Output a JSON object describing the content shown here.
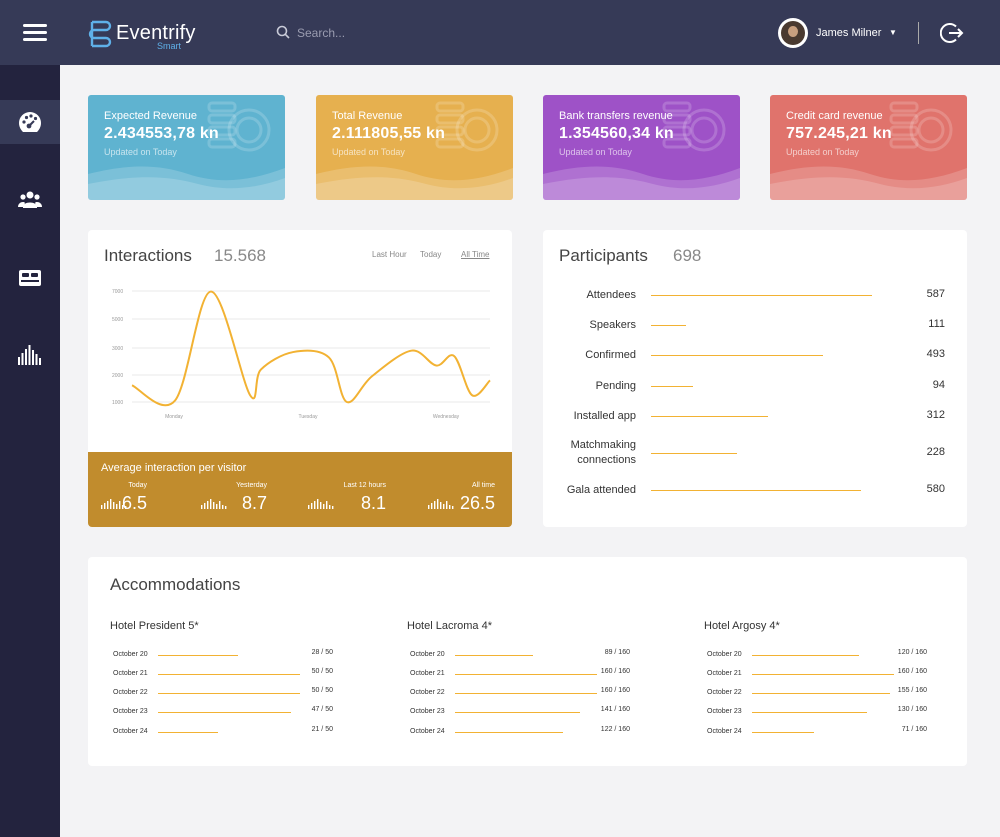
{
  "header": {
    "app_name": "Eventrify",
    "app_sub": "Smart",
    "search_placeholder": "Search...",
    "user_name": "James Milner"
  },
  "sidebar": {
    "items": [
      {
        "icon": "dashboard-gauge-icon",
        "active": true
      },
      {
        "icon": "users-icon",
        "active": false
      },
      {
        "icon": "bed-icon",
        "active": false
      },
      {
        "icon": "equalizer-icon",
        "active": false
      }
    ]
  },
  "cards": [
    {
      "title": "Expected Revenue",
      "value": "2.434553,78 kn",
      "updated": "Updated on Today",
      "color": "#5fb3d0"
    },
    {
      "title": "Total Revenue",
      "value": "2.111805,55 kn",
      "updated": "Updated on Today",
      "color": "#e6b04f"
    },
    {
      "title": "Bank transfers revenue",
      "value": "1.354560,34 kn",
      "updated": "Updated on Today",
      "color": "#9e52c7"
    },
    {
      "title": "Credit card revenue",
      "value": "757.245,21 kn",
      "updated": "Updated on Today",
      "color": "#e0736c"
    }
  ],
  "interactions": {
    "title": "Interactions",
    "count": "15.568",
    "tabs": [
      "Last Hour",
      "Today",
      "All Time"
    ],
    "active_tab": "All Time"
  },
  "chart_data": {
    "type": "line",
    "ylim": [
      1000,
      7000
    ],
    "yticks": [
      "7000",
      "5000",
      "3000",
      "2000",
      "1000"
    ],
    "xticks": [
      "Monday",
      "Tuesday",
      "Wednesday"
    ],
    "series_color": "#f2b233",
    "x": [
      0,
      0.12,
      0.22,
      0.33,
      0.36,
      0.45,
      0.55,
      0.6,
      0.67,
      0.78,
      0.85,
      0.9,
      0.95,
      1.0
    ],
    "y": [
      1620,
      1050,
      6960,
      1250,
      2200,
      2850,
      2650,
      1000,
      1950,
      2900,
      2350,
      2700,
      1250,
      1800
    ]
  },
  "avg": {
    "title": "Average interaction per visitor",
    "stats": [
      {
        "label": "Today",
        "value": "6.5"
      },
      {
        "label": "Yesterday",
        "value": "8.7"
      },
      {
        "label": "Last 12 hours",
        "value": "8.1"
      },
      {
        "label": "All time",
        "value": "26.5"
      }
    ]
  },
  "participants": {
    "title": "Participants",
    "count": "698",
    "rows": [
      {
        "label": "Attendees",
        "value": "587",
        "fraction": 1.0
      },
      {
        "label": "Speakers",
        "value": "111",
        "fraction": 0.16
      },
      {
        "label": "Confirmed",
        "value": "493",
        "fraction": 0.78
      },
      {
        "label": "Pending",
        "value": "94",
        "fraction": 0.19
      },
      {
        "label": "Installed app",
        "value": "312",
        "fraction": 0.53
      },
      {
        "label": "Matchmaking connections",
        "value": "228",
        "fraction": 0.39
      },
      {
        "label": "Gala attended",
        "value": "580",
        "fraction": 0.95
      }
    ]
  },
  "accommodations": {
    "title": "Accommodations",
    "hotels": [
      {
        "name": "Hotel President 5*",
        "rows": [
          {
            "date": "October 20",
            "value": "28 / 50",
            "fraction": 0.56
          },
          {
            "date": "October 21",
            "value": "50 / 50",
            "fraction": 1.0
          },
          {
            "date": "October 22",
            "value": "50 / 50",
            "fraction": 1.0
          },
          {
            "date": "October 23",
            "value": "47 / 50",
            "fraction": 0.94
          },
          {
            "date": "October 24",
            "value": "21 / 50",
            "fraction": 0.42
          }
        ]
      },
      {
        "name": "Hotel Lacroma 4*",
        "rows": [
          {
            "date": "October 20",
            "value": "89 / 160",
            "fraction": 0.55
          },
          {
            "date": "October 21",
            "value": "160 / 160",
            "fraction": 1.0
          },
          {
            "date": "October 22",
            "value": "160 / 160",
            "fraction": 1.0
          },
          {
            "date": "October 23",
            "value": "141 / 160",
            "fraction": 0.88
          },
          {
            "date": "October 24",
            "value": "122 / 160",
            "fraction": 0.76
          }
        ]
      },
      {
        "name": "Hotel Argosy 4*",
        "rows": [
          {
            "date": "October 20",
            "value": "120 / 160",
            "fraction": 0.75
          },
          {
            "date": "October 21",
            "value": "160 / 160",
            "fraction": 1.0
          },
          {
            "date": "October 22",
            "value": "155 / 160",
            "fraction": 0.97
          },
          {
            "date": "October 23",
            "value": "130 / 160",
            "fraction": 0.81
          },
          {
            "date": "October 24",
            "value": "71 / 160",
            "fraction": 0.44
          }
        ]
      }
    ]
  }
}
